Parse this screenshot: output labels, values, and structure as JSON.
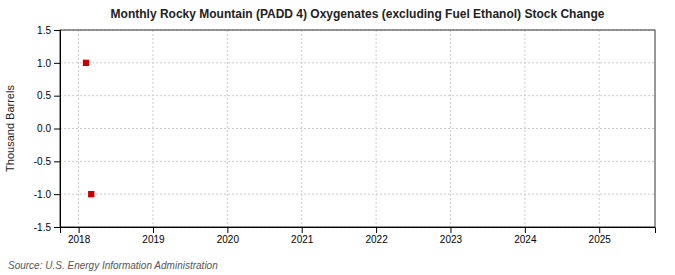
{
  "chart_data": {
    "type": "scatter",
    "title": "Monthly Rocky Mountain (PADD 4) Oxygenates (excluding Fuel Ethanol) Stock Change",
    "y_label": "Thousand Barrels",
    "annotations": [
      "Source: U.S. Energy Information Administration"
    ],
    "x": [
      2018.1,
      2018.17
    ],
    "values": [
      1.0,
      -1.0
    ],
    "color": "#cc0000",
    "marker": "square",
    "xlim": [
      2017.75,
      2025.75
    ],
    "ylim": [
      -1.5,
      1.5
    ],
    "xticks": [
      2018,
      2019,
      2020,
      2021,
      2022,
      2023,
      2024,
      2025
    ],
    "yticks": [
      -1.5,
      {
        "value": -1.0,
        "label": "-1.0"
      },
      -0.5,
      {
        "value": 0.0,
        "label": "0.0"
      },
      0.5,
      {
        "value": 1.0,
        "label": "1.0"
      },
      1.5
    ],
    "grid": true
  }
}
